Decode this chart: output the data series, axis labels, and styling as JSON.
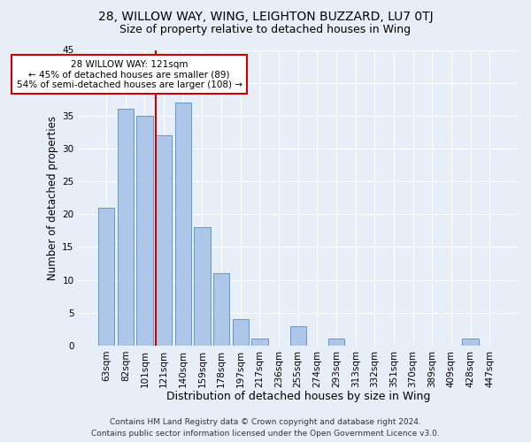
{
  "title1": "28, WILLOW WAY, WING, LEIGHTON BUZZARD, LU7 0TJ",
  "title2": "Size of property relative to detached houses in Wing",
  "xlabel": "Distribution of detached houses by size in Wing",
  "ylabel": "Number of detached properties",
  "categories": [
    "63sqm",
    "82sqm",
    "101sqm",
    "121sqm",
    "140sqm",
    "159sqm",
    "178sqm",
    "197sqm",
    "217sqm",
    "236sqm",
    "255sqm",
    "274sqm",
    "293sqm",
    "313sqm",
    "332sqm",
    "351sqm",
    "370sqm",
    "389sqm",
    "409sqm",
    "428sqm",
    "447sqm"
  ],
  "values": [
    21,
    36,
    35,
    32,
    37,
    18,
    11,
    4,
    1,
    0,
    3,
    0,
    1,
    0,
    0,
    0,
    0,
    0,
    0,
    1,
    0
  ],
  "bar_color": "#aec6e8",
  "bar_edge_color": "#5b9bd5",
  "background_color": "#e8eef7",
  "grid_color": "#ffffff",
  "property_line_index": 3,
  "property_label": "28 WILLOW WAY: 121sqm",
  "annot_line1": "← 45% of detached houses are smaller (89)",
  "annot_line2": "54% of semi-detached houses are larger (108) →",
  "annot_box_color": "#ffffff",
  "annot_box_edge_color": "#cc0000",
  "vline_color": "#cc0000",
  "ylim": [
    0,
    45
  ],
  "yticks": [
    0,
    5,
    10,
    15,
    20,
    25,
    30,
    35,
    40,
    45
  ],
  "footer1": "Contains HM Land Registry data © Crown copyright and database right 2024.",
  "footer2": "Contains public sector information licensed under the Open Government Licence v3.0.",
  "title1_fontsize": 10,
  "title2_fontsize": 9,
  "xlabel_fontsize": 9,
  "ylabel_fontsize": 8.5,
  "tick_fontsize": 7.5,
  "footer_fontsize": 6.5,
  "annot_fontsize": 7.5
}
